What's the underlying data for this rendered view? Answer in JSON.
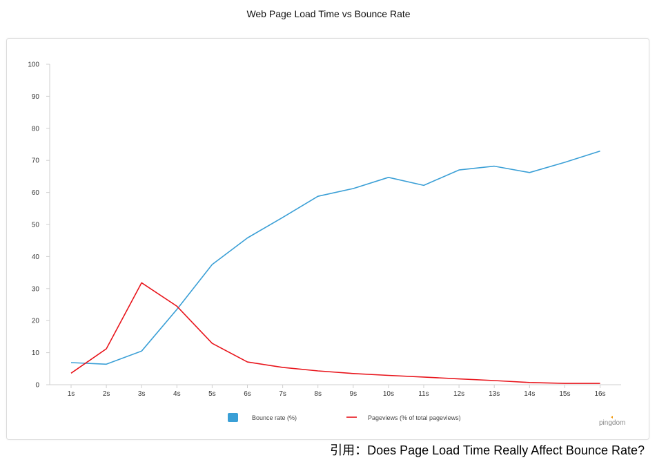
{
  "chart_data": {
    "type": "line",
    "title": "Web Page Load Time vs Bounce Rate",
    "categories": [
      "1s",
      "2s",
      "3s",
      "4s",
      "5s",
      "6s",
      "7s",
      "8s",
      "9s",
      "10s",
      "11s",
      "12s",
      "13s",
      "14s",
      "15s",
      "16s"
    ],
    "series": [
      {
        "name": "Bounce rate  (%)",
        "color": "#3a9fd6",
        "values": [
          6.9,
          6.4,
          10.5,
          23.5,
          37.5,
          45.8,
          52.2,
          58.8,
          61.2,
          64.7,
          62.2,
          67.0,
          68.2,
          66.2,
          69.4,
          72.9
        ]
      },
      {
        "name": "Pageviews (% of total pageviews)",
        "color": "#e8141b",
        "values": [
          3.6,
          11.2,
          31.8,
          24.5,
          12.9,
          7.1,
          5.4,
          4.3,
          3.5,
          2.9,
          2.4,
          1.8,
          1.3,
          0.7,
          0.4,
          0.4
        ]
      }
    ],
    "ylim": [
      0,
      100
    ],
    "yticks": [
      0,
      10,
      20,
      30,
      40,
      50,
      60,
      70,
      80,
      90,
      100
    ],
    "xlabel": "",
    "ylabel": "",
    "grid": false,
    "legend_position": "bottom-center"
  },
  "watermark": "pingdom",
  "citation": "引用：Does Page Load Time Really Affect Bounce Rate?"
}
